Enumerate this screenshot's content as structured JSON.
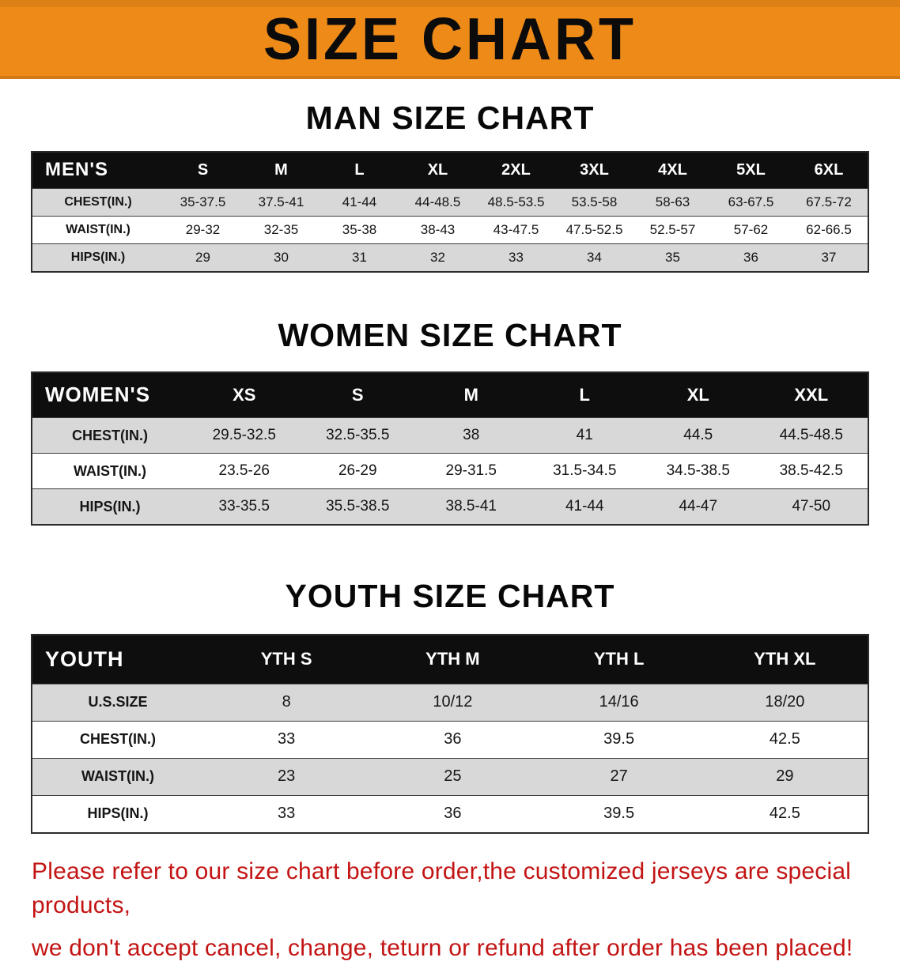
{
  "banner": {
    "title": "SIZE CHART"
  },
  "colors": {
    "banner_bg": "#ee8a18",
    "header_bg": "#0e0e0e",
    "row_alt": "#d8d8d8",
    "disclaimer_red": "#c31414"
  },
  "men": {
    "heading": "MAN SIZE CHART",
    "table": {
      "corner": "MEN'S",
      "columns": [
        "S",
        "M",
        "L",
        "XL",
        "2XL",
        "3XL",
        "4XL",
        "5XL",
        "6XL"
      ],
      "rows": [
        {
          "label": "CHEST(IN.)",
          "values": [
            "35-37.5",
            "37.5-41",
            "41-44",
            "44-48.5",
            "48.5-53.5",
            "53.5-58",
            "58-63",
            "63-67.5",
            "67.5-72"
          ]
        },
        {
          "label": "WAIST(IN.)",
          "values": [
            "29-32",
            "32-35",
            "35-38",
            "38-43",
            "43-47.5",
            "47.5-52.5",
            "52.5-57",
            "57-62",
            "62-66.5"
          ]
        },
        {
          "label": "HIPS(IN.)",
          "values": [
            "29",
            "30",
            "31",
            "32",
            "33",
            "34",
            "35",
            "36",
            "37"
          ]
        }
      ]
    }
  },
  "women": {
    "heading": "WOMEN SIZE CHART",
    "table": {
      "corner": "WOMEN'S",
      "columns": [
        "XS",
        "S",
        "M",
        "L",
        "XL",
        "XXL"
      ],
      "rows": [
        {
          "label": "CHEST(IN.)",
          "values": [
            "29.5-32.5",
            "32.5-35.5",
            "38",
            "41",
            "44.5",
            "44.5-48.5"
          ]
        },
        {
          "label": "WAIST(IN.)",
          "values": [
            "23.5-26",
            "26-29",
            "29-31.5",
            "31.5-34.5",
            "34.5-38.5",
            "38.5-42.5"
          ]
        },
        {
          "label": "HIPS(IN.)",
          "values": [
            "33-35.5",
            "35.5-38.5",
            "38.5-41",
            "41-44",
            "44-47",
            "47-50"
          ]
        }
      ]
    }
  },
  "youth": {
    "heading": "YOUTH SIZE CHART",
    "table": {
      "corner": "YOUTH",
      "columns": [
        "YTH S",
        "YTH M",
        "YTH L",
        "YTH XL"
      ],
      "rows": [
        {
          "label": "U.S.SIZE",
          "values": [
            "8",
            "10/12",
            "14/16",
            "18/20"
          ]
        },
        {
          "label": "CHEST(IN.)",
          "values": [
            "33",
            "36",
            "39.5",
            "42.5"
          ]
        },
        {
          "label": "WAIST(IN.)",
          "values": [
            "23",
            "25",
            "27",
            "29"
          ]
        },
        {
          "label": "HIPS(IN.)",
          "values": [
            "33",
            "36",
            "39.5",
            "42.5"
          ]
        }
      ]
    }
  },
  "disclaimer": {
    "line1": "Please refer to our size chart before order,the customized jerseys are special products,",
    "line2": "we don't accept cancel, change, teturn or refund after order has been placed!"
  }
}
